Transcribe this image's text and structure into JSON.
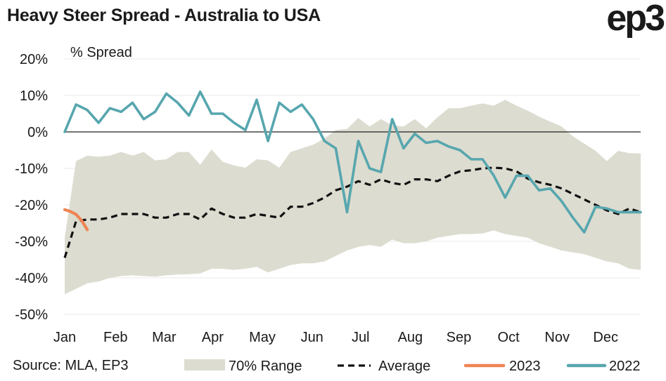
{
  "title": "Heavy Steer Spread - Australia to USA",
  "logo": "ep3",
  "source": "Source: MLA, EP3",
  "colors": {
    "range": "#dcdcd0",
    "average": "#111111",
    "s2023": "#ef8452",
    "s2022": "#57a6ae",
    "zero": "#222222",
    "grid": "#e8e8e8"
  },
  "chart_data": {
    "type": "line",
    "ylabel": "% Spread",
    "ylim": [
      -50,
      20
    ],
    "yticks": [
      20,
      10,
      0,
      -10,
      -20,
      -30,
      -40,
      -50
    ],
    "ytick_labels": [
      "20%",
      "10%",
      "0%",
      "-10%",
      "-20%",
      "-30%",
      "-40%",
      "-50%"
    ],
    "xlim": [
      1,
      52
    ],
    "xticks": [
      1,
      5.5,
      9.8,
      14.1,
      18.5,
      22.9,
      27.2,
      31.6,
      35.9,
      40.3,
      44.6,
      48.9
    ],
    "xtick_labels": [
      "Jan",
      "Feb",
      "Mar",
      "Apr",
      "May",
      "Jun",
      "Jul",
      "Aug",
      "Sep",
      "Oct",
      "Nov",
      "Dec"
    ],
    "grid": "horizontal",
    "legend": [
      "70% Range",
      "Average",
      "2023",
      "2022"
    ],
    "series": [
      {
        "name": "70% Range",
        "x": [
          1,
          2,
          3,
          4,
          5,
          6,
          7,
          8,
          9,
          10,
          11,
          12,
          13,
          14,
          15,
          16,
          17,
          18,
          19,
          20,
          21,
          22,
          23,
          24,
          25,
          26,
          27,
          28,
          29,
          30,
          31,
          32,
          33,
          34,
          35,
          36,
          37,
          38,
          39,
          40,
          41,
          42,
          43,
          44,
          45,
          46,
          47,
          48,
          49,
          50,
          51,
          52
        ],
        "low": [
          -44.5,
          -43,
          -41.5,
          -41,
          -40,
          -39.5,
          -39.3,
          -39.5,
          -39.7,
          -39.3,
          -39.1,
          -39,
          -38.8,
          -37.5,
          -37.5,
          -37.8,
          -37.5,
          -37,
          -38.5,
          -37.5,
          -36.5,
          -36,
          -36,
          -35.5,
          -34,
          -32.5,
          -31.5,
          -31,
          -31.5,
          -29.5,
          -30.5,
          -30.5,
          -30,
          -29,
          -28.5,
          -28,
          -28,
          -27.8,
          -27,
          -28,
          -28.5,
          -29,
          -30.5,
          -31.5,
          -32.5,
          -33,
          -33.5,
          -34.5,
          -35.5,
          -36,
          -37.5,
          -37.8
        ],
        "high": [
          -29,
          -8,
          -6.5,
          -6.8,
          -6.5,
          -5.5,
          -6.5,
          -5.5,
          -7.8,
          -7.5,
          -5.5,
          -5.5,
          -9,
          -4.8,
          -8.2,
          -9.2,
          -9.8,
          -7.5,
          -7.8,
          -9.8,
          -5.5,
          -4.5,
          -3.5,
          -1.8,
          0.5,
          0.8,
          3.8,
          1.5,
          3.5,
          1.8,
          1.5,
          3.5,
          1,
          4,
          6.5,
          6.5,
          7.2,
          7.8,
          7.2,
          8.8,
          7.2,
          5.8,
          4.2,
          2.8,
          1.5,
          -1.2,
          -3.2,
          -5.2,
          -8,
          -5.2,
          -5.8,
          -5.9
        ]
      },
      {
        "name": "Average",
        "x": [
          1,
          2,
          3,
          4,
          5,
          6,
          7,
          8,
          9,
          10,
          11,
          12,
          13,
          14,
          15,
          16,
          17,
          18,
          19,
          20,
          21,
          22,
          23,
          24,
          25,
          26,
          27,
          28,
          29,
          30,
          31,
          32,
          33,
          34,
          35,
          36,
          37,
          38,
          39,
          40,
          41,
          42,
          43,
          44,
          45,
          46,
          47,
          48,
          49,
          50,
          51,
          52
        ],
        "y": [
          -34.5,
          -24.5,
          -24,
          -24,
          -23.5,
          -22.5,
          -22.5,
          -22.5,
          -23.5,
          -23.5,
          -22.5,
          -22.5,
          -24,
          -21,
          -22.5,
          -23.5,
          -23.5,
          -22.5,
          -23,
          -23.5,
          -20.5,
          -20.5,
          -19.5,
          -18,
          -16,
          -15,
          -13.5,
          -14.5,
          -13,
          -14,
          -14.5,
          -13,
          -13,
          -13.5,
          -12,
          -10.8,
          -10.5,
          -10,
          -9.8,
          -10,
          -10.8,
          -12.8,
          -13.8,
          -14.5,
          -15.5,
          -17,
          -18.5,
          -20,
          -21.5,
          -22.5,
          -21,
          -22
        ]
      },
      {
        "name": "2023",
        "x": [
          1,
          1.5,
          2,
          2.5,
          3
        ],
        "y": [
          -21.3,
          -21.8,
          -22.6,
          -24.3,
          -26.8
        ]
      },
      {
        "name": "2022",
        "x": [
          1,
          2,
          3,
          4,
          5,
          6,
          7,
          8,
          9,
          10,
          11,
          12,
          13,
          14,
          15,
          16,
          17,
          18,
          19,
          20,
          21,
          22,
          23,
          24,
          25,
          26,
          27,
          28,
          29,
          30,
          31,
          32,
          33,
          34,
          35,
          36,
          37,
          38,
          39,
          40,
          41,
          42,
          43,
          44,
          45,
          46,
          47,
          48,
          49,
          50,
          51,
          52
        ],
        "y": [
          0,
          7.5,
          6,
          2.5,
          6.5,
          5.5,
          8,
          3.5,
          5.5,
          10.5,
          8,
          4.5,
          11,
          5,
          5,
          2.5,
          0.5,
          8.8,
          -2.5,
          8,
          5.5,
          7.5,
          3.5,
          -2.5,
          -4.5,
          -22,
          -2.5,
          -10,
          -11,
          3.5,
          -4.5,
          -0.5,
          -3,
          -2.5,
          -4,
          -5,
          -7.5,
          -7.5,
          -12,
          -18,
          -12,
          -12,
          -16,
          -15.5,
          -19,
          -23.5,
          -27.5,
          -20.5,
          -21,
          -22,
          -22,
          -22
        ]
      }
    ]
  }
}
